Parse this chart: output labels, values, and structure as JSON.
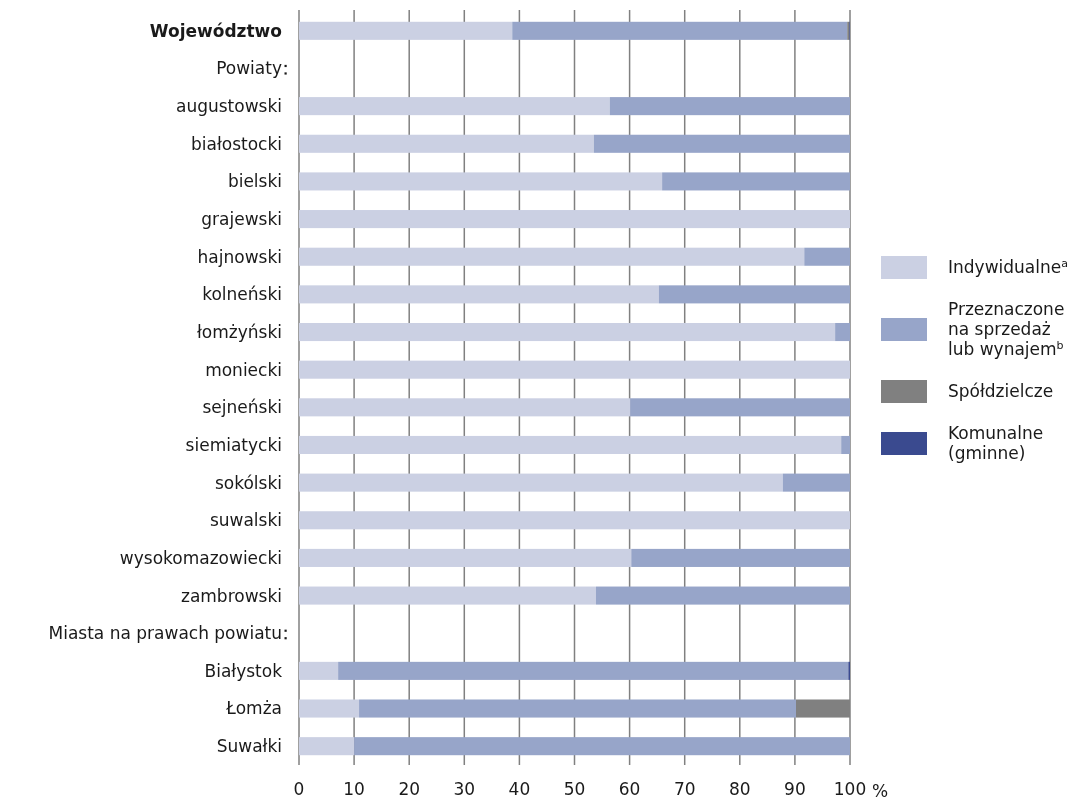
{
  "chart_data": {
    "type": "bar",
    "orientation": "horizontal",
    "stacked": true,
    "categories": [
      "Województwo",
      "Powiaty",
      "augustowski",
      "białostocki",
      "bielski",
      "grajewski",
      "hajnowski",
      "kolneński",
      "łomżyński",
      "moniecki",
      "sejneński",
      "siemiatycki",
      "sokólski",
      "suwalski",
      "wysokomazowiecki",
      "zambrowski",
      "Miasta na prawach powiatu",
      "Białystok",
      "Łomża",
      "Suwałki"
    ],
    "series": [
      {
        "name": "Indywidualne$^{a}$",
        "color": "#cbd0e3",
        "values": [
          38.7,
          null,
          56.4,
          53.5,
          65.9,
          100,
          91.7,
          65.3,
          97.3,
          100,
          60.1,
          98.4,
          87.8,
          100,
          60.3,
          53.9,
          null,
          7.1,
          10.9,
          10.0
        ]
      },
      {
        "name": "Przeznaczone na sprzedaż lub wynajem$^{b}$",
        "color": "#97a5c9",
        "values": [
          60.8,
          null,
          43.6,
          46.5,
          34.1,
          0,
          8.3,
          34.7,
          2.7,
          0,
          39.9,
          1.6,
          12.2,
          0,
          39.7,
          46.1,
          null,
          92.6,
          79.3,
          90.0
        ]
      },
      {
        "name": "Spółdzielcze",
        "color": "#808080",
        "values": [
          0.4,
          null,
          0,
          0,
          0,
          0,
          0,
          0,
          0,
          0,
          0,
          0,
          0,
          0,
          0,
          0,
          null,
          0,
          9.8,
          0
        ]
      },
      {
        "name": "Komunalne (gminne)",
        "color": "#3a4a8f",
        "values": [
          0.1,
          null,
          0,
          0,
          0,
          0,
          0,
          0,
          0,
          0,
          0,
          0,
          0,
          0,
          0,
          0,
          null,
          0.3,
          0,
          0
        ]
      }
    ],
    "xlim": [
      0,
      100
    ],
    "xticks": [
      0,
      10,
      20,
      30,
      40,
      50,
      60,
      70,
      80,
      90,
      100
    ],
    "xlabel": "%",
    "grid": "x",
    "legend": "right"
  }
}
